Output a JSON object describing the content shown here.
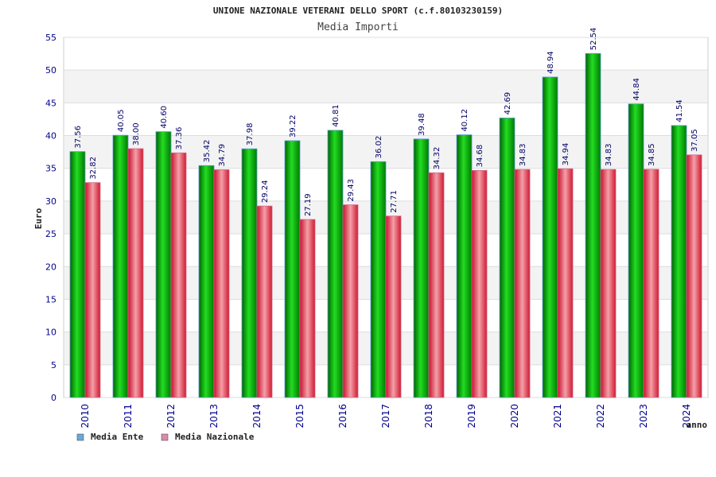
{
  "chart_data": {
    "type": "bar",
    "title": "UNIONE NAZIONALE VETERANI DELLO SPORT (c.f.80103230159)",
    "subtitle": "Media Importi",
    "xlabel": "anno",
    "ylabel": "Euro",
    "ylim": [
      0,
      55
    ],
    "yticks": [
      0,
      5,
      10,
      15,
      20,
      25,
      30,
      35,
      40,
      45,
      50,
      55
    ],
    "grid": true,
    "legend_position": "bottom-left",
    "categories": [
      "2010",
      "2011",
      "2012",
      "2013",
      "2014",
      "2015",
      "2016",
      "2017",
      "2018",
      "2019",
      "2020",
      "2021",
      "2022",
      "2023",
      "2024"
    ],
    "series": [
      {
        "name": "Media Ente",
        "color": "#00aa00",
        "legend_color": "#66aadd",
        "values": [
          37.56,
          40.05,
          40.6,
          35.42,
          37.98,
          39.22,
          40.81,
          36.02,
          39.48,
          40.12,
          42.69,
          48.94,
          52.54,
          44.84,
          41.54
        ],
        "labels": [
          "37.56",
          "40.05",
          "40.60",
          "35.42",
          "37.98",
          "39.22",
          "40.81",
          "36.02",
          "39.48",
          "40.12",
          "42.69",
          "48.94",
          "52.54",
          "44.84",
          "41.54"
        ]
      },
      {
        "name": "Media Nazionale",
        "color": "#e8303a",
        "legend_color": "#dd88aa",
        "values": [
          32.82,
          38.0,
          37.36,
          34.79,
          29.24,
          27.19,
          29.43,
          27.71,
          34.32,
          34.68,
          34.83,
          34.94,
          34.83,
          34.85,
          37.05
        ],
        "labels": [
          "32.82",
          "38.00",
          "37.36",
          "34.79",
          "29.24",
          "27.19",
          "29.43",
          "27.71",
          "34.32",
          "34.68",
          "34.83",
          "34.94",
          "34.83",
          "34.85",
          "37.05"
        ]
      }
    ]
  }
}
